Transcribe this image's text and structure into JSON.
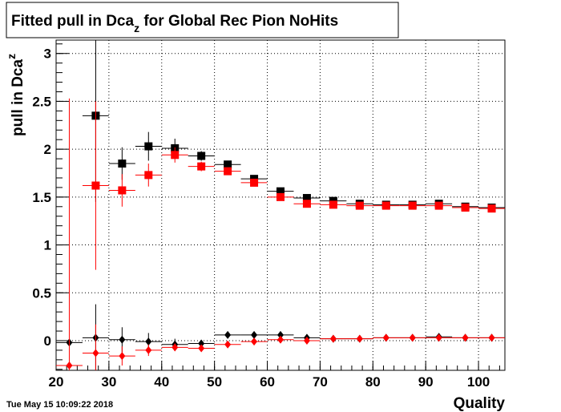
{
  "chart_data": {
    "type": "scatter",
    "title": {
      "main": "Fitted pull in Dca",
      "sub": "z",
      "rest": " for Global Rec Pion NoHits"
    },
    "y_label": {
      "main": "pull in Dca",
      "sub": "z"
    },
    "x_label": "Quality",
    "timestamp": "Tue May 15 10:09:22 2018",
    "xlim": [
      20,
      105
    ],
    "ylim": [
      -0.31,
      3.14
    ],
    "xticks": [
      20,
      30,
      40,
      50,
      60,
      70,
      80,
      90,
      100
    ],
    "yticks": [
      0,
      0.5,
      1,
      1.5,
      2,
      2.5,
      3
    ],
    "grid": true,
    "x": [
      22.5,
      27.5,
      32.5,
      37.5,
      42.5,
      47.5,
      52.5,
      57.5,
      62.5,
      67.5,
      72.5,
      77.5,
      82.5,
      87.5,
      92.5,
      97.5,
      102.5
    ],
    "xerr": 2.5,
    "series": [
      {
        "marker": "square",
        "color": "#000000",
        "values": [
          null,
          2.35,
          1.85,
          2.03,
          2.01,
          1.93,
          1.84,
          1.69,
          1.56,
          1.49,
          1.46,
          1.43,
          1.42,
          1.42,
          1.43,
          1.4,
          1.39
        ],
        "errors": [
          null,
          0.9,
          0.17,
          0.15,
          0.1,
          0.05,
          0.03,
          0.03,
          0.02,
          0.02,
          0.02,
          0.02,
          0.02,
          0.02,
          0.02,
          0.02,
          0.02
        ]
      },
      {
        "marker": "square",
        "color": "#ff0000",
        "values": [
          null,
          1.62,
          1.57,
          1.73,
          1.94,
          1.82,
          1.77,
          1.65,
          1.5,
          1.43,
          1.42,
          1.41,
          1.41,
          1.41,
          1.41,
          1.39,
          1.38
        ],
        "errors": [
          null,
          0.88,
          0.17,
          0.12,
          0.08,
          0.05,
          0.03,
          0.03,
          0.02,
          0.02,
          0.02,
          0.02,
          0.02,
          0.02,
          0.02,
          0.02,
          0.02
        ]
      },
      {
        "marker": "diamond",
        "color": "#000000",
        "values": [
          -0.02,
          0.03,
          0.01,
          -0.01,
          -0.04,
          -0.03,
          0.06,
          0.06,
          0.06,
          0.03,
          0.02,
          0.02,
          0.03,
          0.03,
          0.04,
          0.03,
          0.03
        ],
        "errors": [
          0.03,
          0.35,
          0.13,
          0.09,
          0.06,
          0.03,
          0.02,
          0.02,
          0.02,
          0.02,
          0.02,
          0.02,
          0.02,
          0.02,
          0.02,
          0.02,
          0.02
        ]
      },
      {
        "marker": "diamond",
        "color": "#ff0000",
        "values": [
          -0.26,
          -0.13,
          -0.16,
          -0.1,
          -0.07,
          -0.08,
          -0.04,
          -0.01,
          0.01,
          0.0,
          0.02,
          0.02,
          0.03,
          0.03,
          0.03,
          0.03,
          0.03
        ],
        "errors": [
          2.79,
          0.3,
          0.1,
          0.06,
          0.04,
          0.03,
          0.02,
          0.02,
          0.02,
          0.02,
          0.02,
          0.02,
          0.02,
          0.02,
          0.02,
          0.02,
          0.02
        ]
      }
    ]
  }
}
